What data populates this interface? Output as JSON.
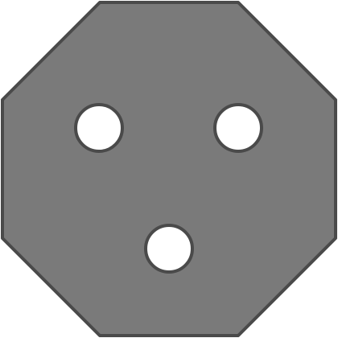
{
  "shape": {
    "kind": "octagon",
    "fill_color": "#7a7a7a",
    "stroke_color": "#4a4a4a"
  },
  "holes": {
    "count": 3,
    "fill_color": "#ffffff",
    "stroke_color": "#4a4a4a"
  }
}
